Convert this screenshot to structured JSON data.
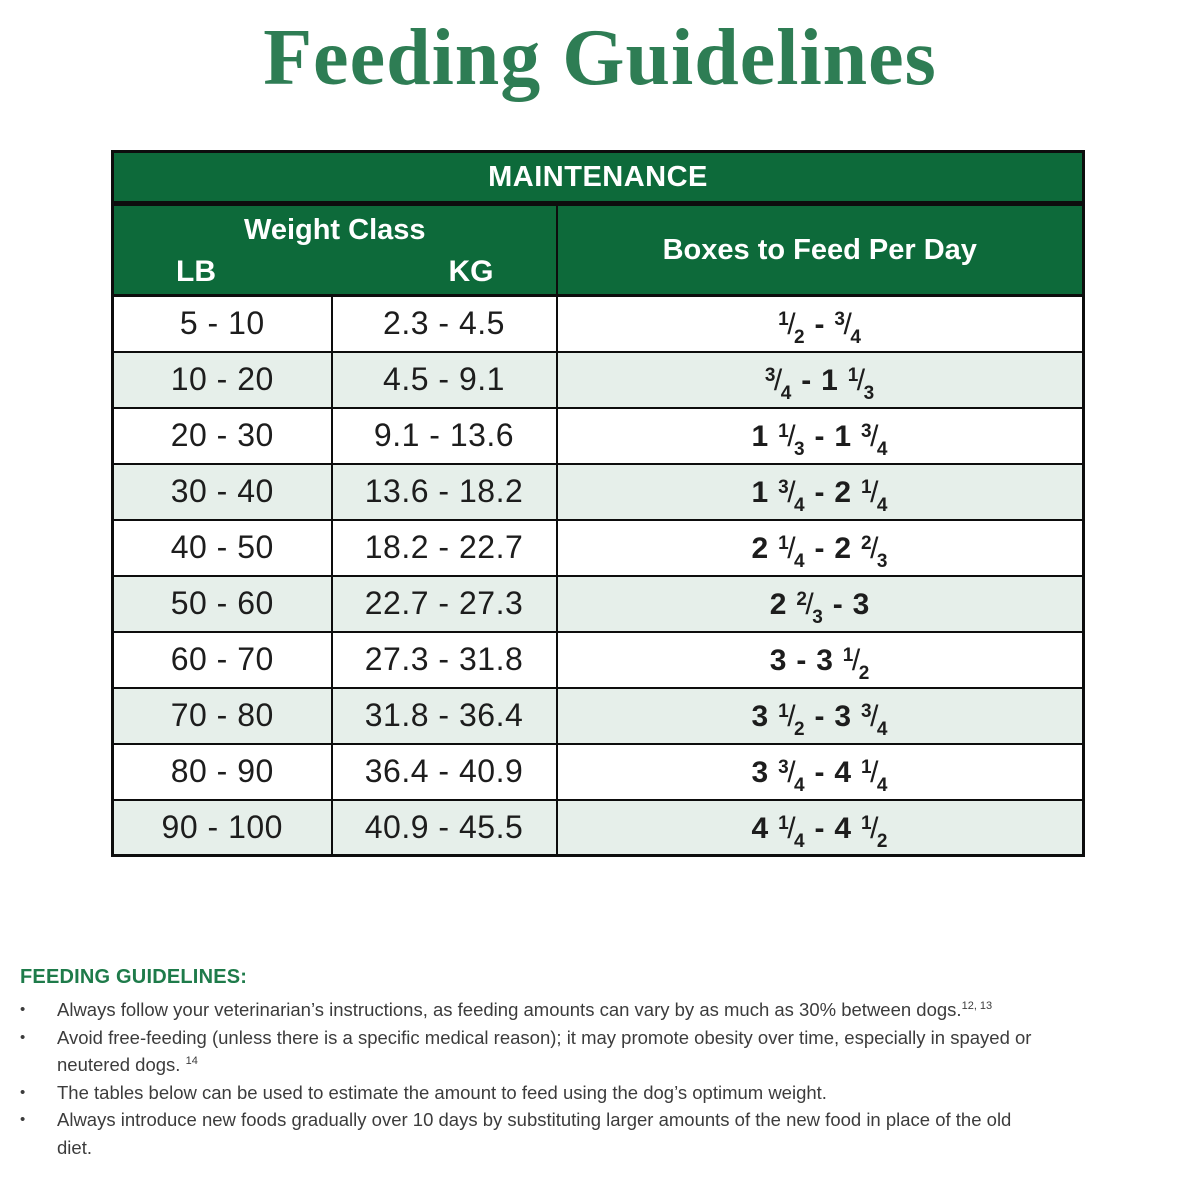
{
  "title": "Feeding Guidelines",
  "table": {
    "header": "MAINTENANCE",
    "weight_class_label": "Weight Class",
    "lb_label": "LB",
    "kg_label": "KG",
    "boxes_label": "Boxes to Feed Per Day",
    "rows": [
      {
        "lb": "5 - 10",
        "kg": "2.3 - 4.5",
        "boxes": "1/2 - 3/4"
      },
      {
        "lb": "10 - 20",
        "kg": "4.5 - 9.1",
        "boxes": "3/4 - 1 1/3"
      },
      {
        "lb": "20 - 30",
        "kg": "9.1 - 13.6",
        "boxes": "1 1/3 - 1 3/4"
      },
      {
        "lb": "30 - 40",
        "kg": "13.6 - 18.2",
        "boxes": "1 3/4 - 2 1/4"
      },
      {
        "lb": "40 - 50",
        "kg": "18.2 - 22.7",
        "boxes": "2 1/4 - 2 2/3"
      },
      {
        "lb": "50 - 60",
        "kg": "22.7 - 27.3",
        "boxes": "2 2/3 - 3"
      },
      {
        "lb": "60 - 70",
        "kg": "27.3 - 31.8",
        "boxes": "3 - 3 1/2"
      },
      {
        "lb": "70 - 80",
        "kg": "31.8 - 36.4",
        "boxes": "3 1/2 - 3 3/4"
      },
      {
        "lb": "80 - 90",
        "kg": "36.4 - 40.9",
        "boxes": "3 3/4 - 4 1/4"
      },
      {
        "lb": "90 - 100",
        "kg": "40.9 - 45.5",
        "boxes": "4 1/4 - 4 1/2"
      }
    ]
  },
  "guidelines": {
    "heading": "FEEDING GUIDELINES:",
    "bullets": [
      {
        "lines": [
          {
            "text": "Always follow your veterinarian’s instructions, as feeding amounts can vary by as much as 30% between dogs.",
            "sup": "12, 13"
          }
        ]
      },
      {
        "lines": [
          {
            "text": "Avoid free-feeding (unless there is a specific medical reason); it may promote obesity over time, especially in spayed or"
          },
          {
            "text": "neutered dogs. ",
            "sup": "14"
          }
        ]
      },
      {
        "lines": [
          {
            "text": "The tables below can be used to estimate the amount to feed using the dog’s optimum weight."
          }
        ]
      },
      {
        "lines": [
          {
            "text": "Always introduce new foods gradually over 10 days by substituting larger amounts of the new food in place of the old"
          },
          {
            "text": "diet."
          }
        ]
      }
    ]
  },
  "colors": {
    "title_green": "#2E7D54",
    "header_green": "#0D6A3A",
    "row_alt": "#E6EFEA",
    "guidelines_green": "#1E7B4A",
    "border": "#0D0D0D"
  }
}
